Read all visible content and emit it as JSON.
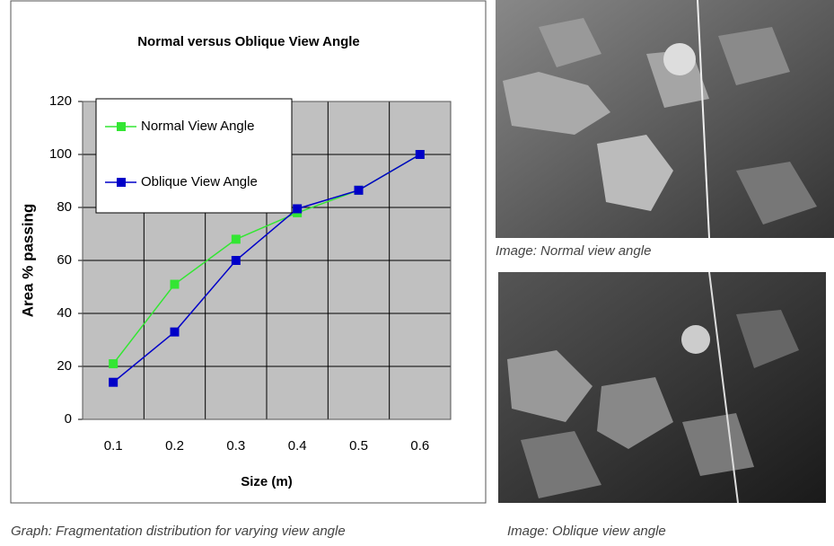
{
  "chart_data": {
    "type": "line",
    "title": "Normal versus Oblique View Angle",
    "xlabel": "Size (m)",
    "ylabel": "Area % passing",
    "categories": [
      "0.1",
      "0.2",
      "0.3",
      "0.4",
      "0.5",
      "0.6"
    ],
    "series": [
      {
        "name": "Normal View Angle",
        "color": "#33e633",
        "values": [
          21,
          51,
          68,
          78,
          86.5,
          100
        ]
      },
      {
        "name": "Oblique View Angle",
        "color": "#0000c8",
        "values": [
          14,
          33,
          60,
          79.5,
          86.5,
          100
        ]
      }
    ],
    "ylim": [
      0,
      120
    ],
    "yticks": [
      0,
      20,
      40,
      60,
      80,
      100,
      120
    ],
    "grid": true,
    "legend": "upper left"
  },
  "graph_caption": "Graph: Fragmentation distribution for varying view angle",
  "images": [
    {
      "caption": "Image: Normal view angle"
    },
    {
      "caption": "Image: Oblique view angle"
    }
  ]
}
